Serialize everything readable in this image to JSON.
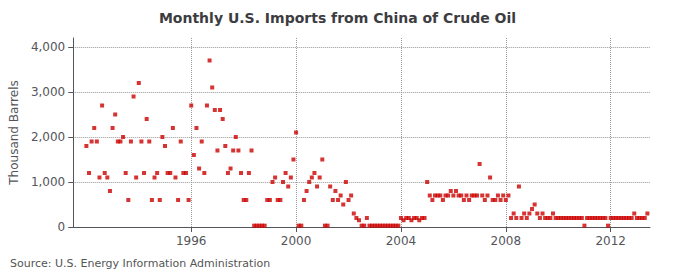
{
  "chart_data": {
    "type": "scatter",
    "title": "Monthly U.S. Imports from China of Crude Oil",
    "ylabel": "Thousand Barrels",
    "annotations": [
      "Source: U.S. Energy Information Administration"
    ],
    "color": "#cc0000",
    "marker": "square",
    "grid": true,
    "xlim": [
      1991.5,
      2013.5
    ],
    "xticks": [
      1996,
      2000,
      2004,
      2008,
      2012
    ],
    "ylim": [
      0,
      4200
    ],
    "yticks": [
      0,
      {
        "value": 1000,
        "label": "1,000"
      },
      {
        "value": 2000,
        "label": "2,000"
      },
      {
        "value": 3000,
        "label": "3,000"
      },
      {
        "value": 4000,
        "label": "4,000"
      }
    ],
    "x": [
      1992.0,
      1992.1,
      1992.2,
      1992.3,
      1992.4,
      1992.5,
      1992.6,
      1992.7,
      1992.8,
      1992.9,
      1993.0,
      1993.1,
      1993.2,
      1993.3,
      1993.4,
      1993.5,
      1993.6,
      1993.7,
      1993.8,
      1993.9,
      1994.0,
      1994.1,
      1994.2,
      1994.3,
      1994.4,
      1994.5,
      1994.6,
      1994.7,
      1994.8,
      1994.9,
      1995.0,
      1995.1,
      1995.2,
      1995.3,
      1995.4,
      1995.5,
      1995.6,
      1995.7,
      1995.8,
      1995.9,
      1996.0,
      1996.1,
      1996.2,
      1996.3,
      1996.4,
      1996.5,
      1996.6,
      1996.7,
      1996.8,
      1996.9,
      1997.0,
      1997.1,
      1997.2,
      1997.3,
      1997.4,
      1997.5,
      1997.6,
      1997.7,
      1997.8,
      1997.9,
      1998.0,
      1998.1,
      1998.2,
      1998.3,
      1998.4,
      1998.5,
      1998.6,
      1998.7,
      1998.8,
      1998.9,
      1999.0,
      1999.1,
      1999.2,
      1999.3,
      1999.4,
      1999.5,
      1999.6,
      1999.7,
      1999.8,
      1999.9,
      2000.0,
      2000.1,
      2000.2,
      2000.3,
      2000.4,
      2000.5,
      2000.6,
      2000.7,
      2000.8,
      2000.9,
      2001.0,
      2001.1,
      2001.2,
      2001.3,
      2001.4,
      2001.5,
      2001.6,
      2001.7,
      2001.8,
      2001.9,
      2002.0,
      2002.1,
      2002.2,
      2002.3,
      2002.4,
      2002.5,
      2002.6,
      2002.7,
      2002.8,
      2002.9,
      2003.0,
      2003.1,
      2003.2,
      2003.3,
      2003.4,
      2003.5,
      2003.6,
      2003.7,
      2003.8,
      2003.9,
      2004.0,
      2004.1,
      2004.2,
      2004.3,
      2004.4,
      2004.5,
      2004.6,
      2004.7,
      2004.8,
      2004.9,
      2005.0,
      2005.1,
      2005.2,
      2005.3,
      2005.4,
      2005.5,
      2005.6,
      2005.7,
      2005.8,
      2005.9,
      2006.0,
      2006.1,
      2006.2,
      2006.3,
      2006.4,
      2006.5,
      2006.6,
      2006.7,
      2006.8,
      2006.9,
      2007.0,
      2007.1,
      2007.2,
      2007.3,
      2007.4,
      2007.5,
      2007.6,
      2007.7,
      2007.8,
      2007.9,
      2008.0,
      2008.1,
      2008.2,
      2008.3,
      2008.4,
      2008.5,
      2008.6,
      2008.7,
      2008.8,
      2008.9,
      2009.0,
      2009.1,
      2009.2,
      2009.3,
      2009.4,
      2009.5,
      2009.6,
      2009.7,
      2009.8,
      2009.9,
      2010.0,
      2010.1,
      2010.2,
      2010.3,
      2010.4,
      2010.5,
      2010.6,
      2010.7,
      2010.8,
      2010.9,
      2011.0,
      2011.1,
      2011.2,
      2011.3,
      2011.4,
      2011.5,
      2011.6,
      2011.7,
      2011.8,
      2011.9,
      2012.0,
      2012.1,
      2012.2,
      2012.3,
      2012.4,
      2012.5,
      2012.6,
      2012.7,
      2012.8,
      2012.9,
      2013.0,
      2013.1,
      2013.2,
      2013.3,
      2013.4
    ],
    "values": [
      1800,
      1200,
      1900,
      2200,
      1900,
      1100,
      2700,
      1200,
      1100,
      800,
      2200,
      2500,
      1900,
      1900,
      2000,
      1200,
      600,
      1900,
      2900,
      1100,
      3200,
      1900,
      1200,
      2400,
      1900,
      600,
      1100,
      1200,
      600,
      2000,
      1800,
      1200,
      1200,
      2200,
      1100,
      600,
      1900,
      1200,
      1200,
      600,
      2700,
      1600,
      2200,
      1300,
      1900,
      1200,
      2700,
      3700,
      3100,
      2600,
      1700,
      2600,
      2400,
      1800,
      1200,
      1300,
      1700,
      2000,
      1700,
      1200,
      600,
      600,
      1200,
      1700,
      30,
      30,
      30,
      30,
      30,
      600,
      600,
      1000,
      1100,
      600,
      600,
      1000,
      1200,
      900,
      1100,
      1500,
      2100,
      30,
      30,
      600,
      800,
      1000,
      1100,
      1200,
      900,
      1100,
      1500,
      30,
      30,
      900,
      600,
      800,
      600,
      700,
      500,
      1000,
      600,
      700,
      300,
      200,
      150,
      30,
      30,
      200,
      30,
      30,
      30,
      30,
      30,
      30,
      30,
      30,
      30,
      30,
      30,
      30,
      200,
      150,
      200,
      200,
      150,
      200,
      200,
      150,
      200,
      200,
      1000,
      700,
      600,
      700,
      700,
      700,
      600,
      700,
      700,
      800,
      700,
      800,
      700,
      700,
      600,
      700,
      600,
      700,
      700,
      700,
      1400,
      700,
      600,
      700,
      1100,
      600,
      600,
      700,
      600,
      700,
      600,
      700,
      200,
      300,
      200,
      900,
      200,
      300,
      200,
      300,
      400,
      500,
      300,
      200,
      300,
      200,
      200,
      200,
      300,
      200,
      200,
      200,
      200,
      200,
      200,
      200,
      200,
      200,
      200,
      200,
      30,
      200,
      200,
      200,
      200,
      200,
      200,
      200,
      200,
      30,
      200,
      200,
      200,
      200,
      200,
      200,
      200,
      200,
      200,
      300,
      200,
      200,
      200,
      200,
      300
    ]
  }
}
